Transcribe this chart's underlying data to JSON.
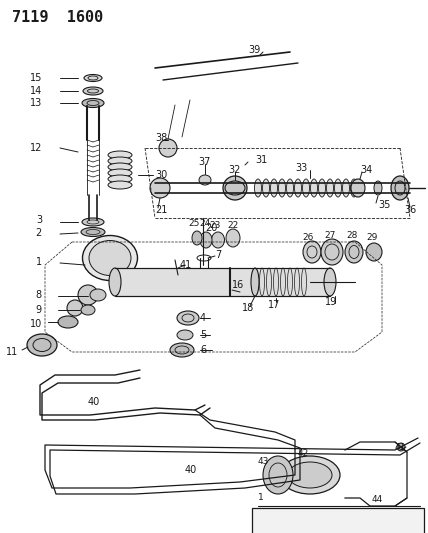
{
  "title": "7119  1600",
  "bg_color": "#ffffff",
  "line_color": "#1a1a1a",
  "title_fontsize": 11,
  "label_fontsize": 7,
  "fig_width": 4.28,
  "fig_height": 5.33,
  "dpi": 100
}
